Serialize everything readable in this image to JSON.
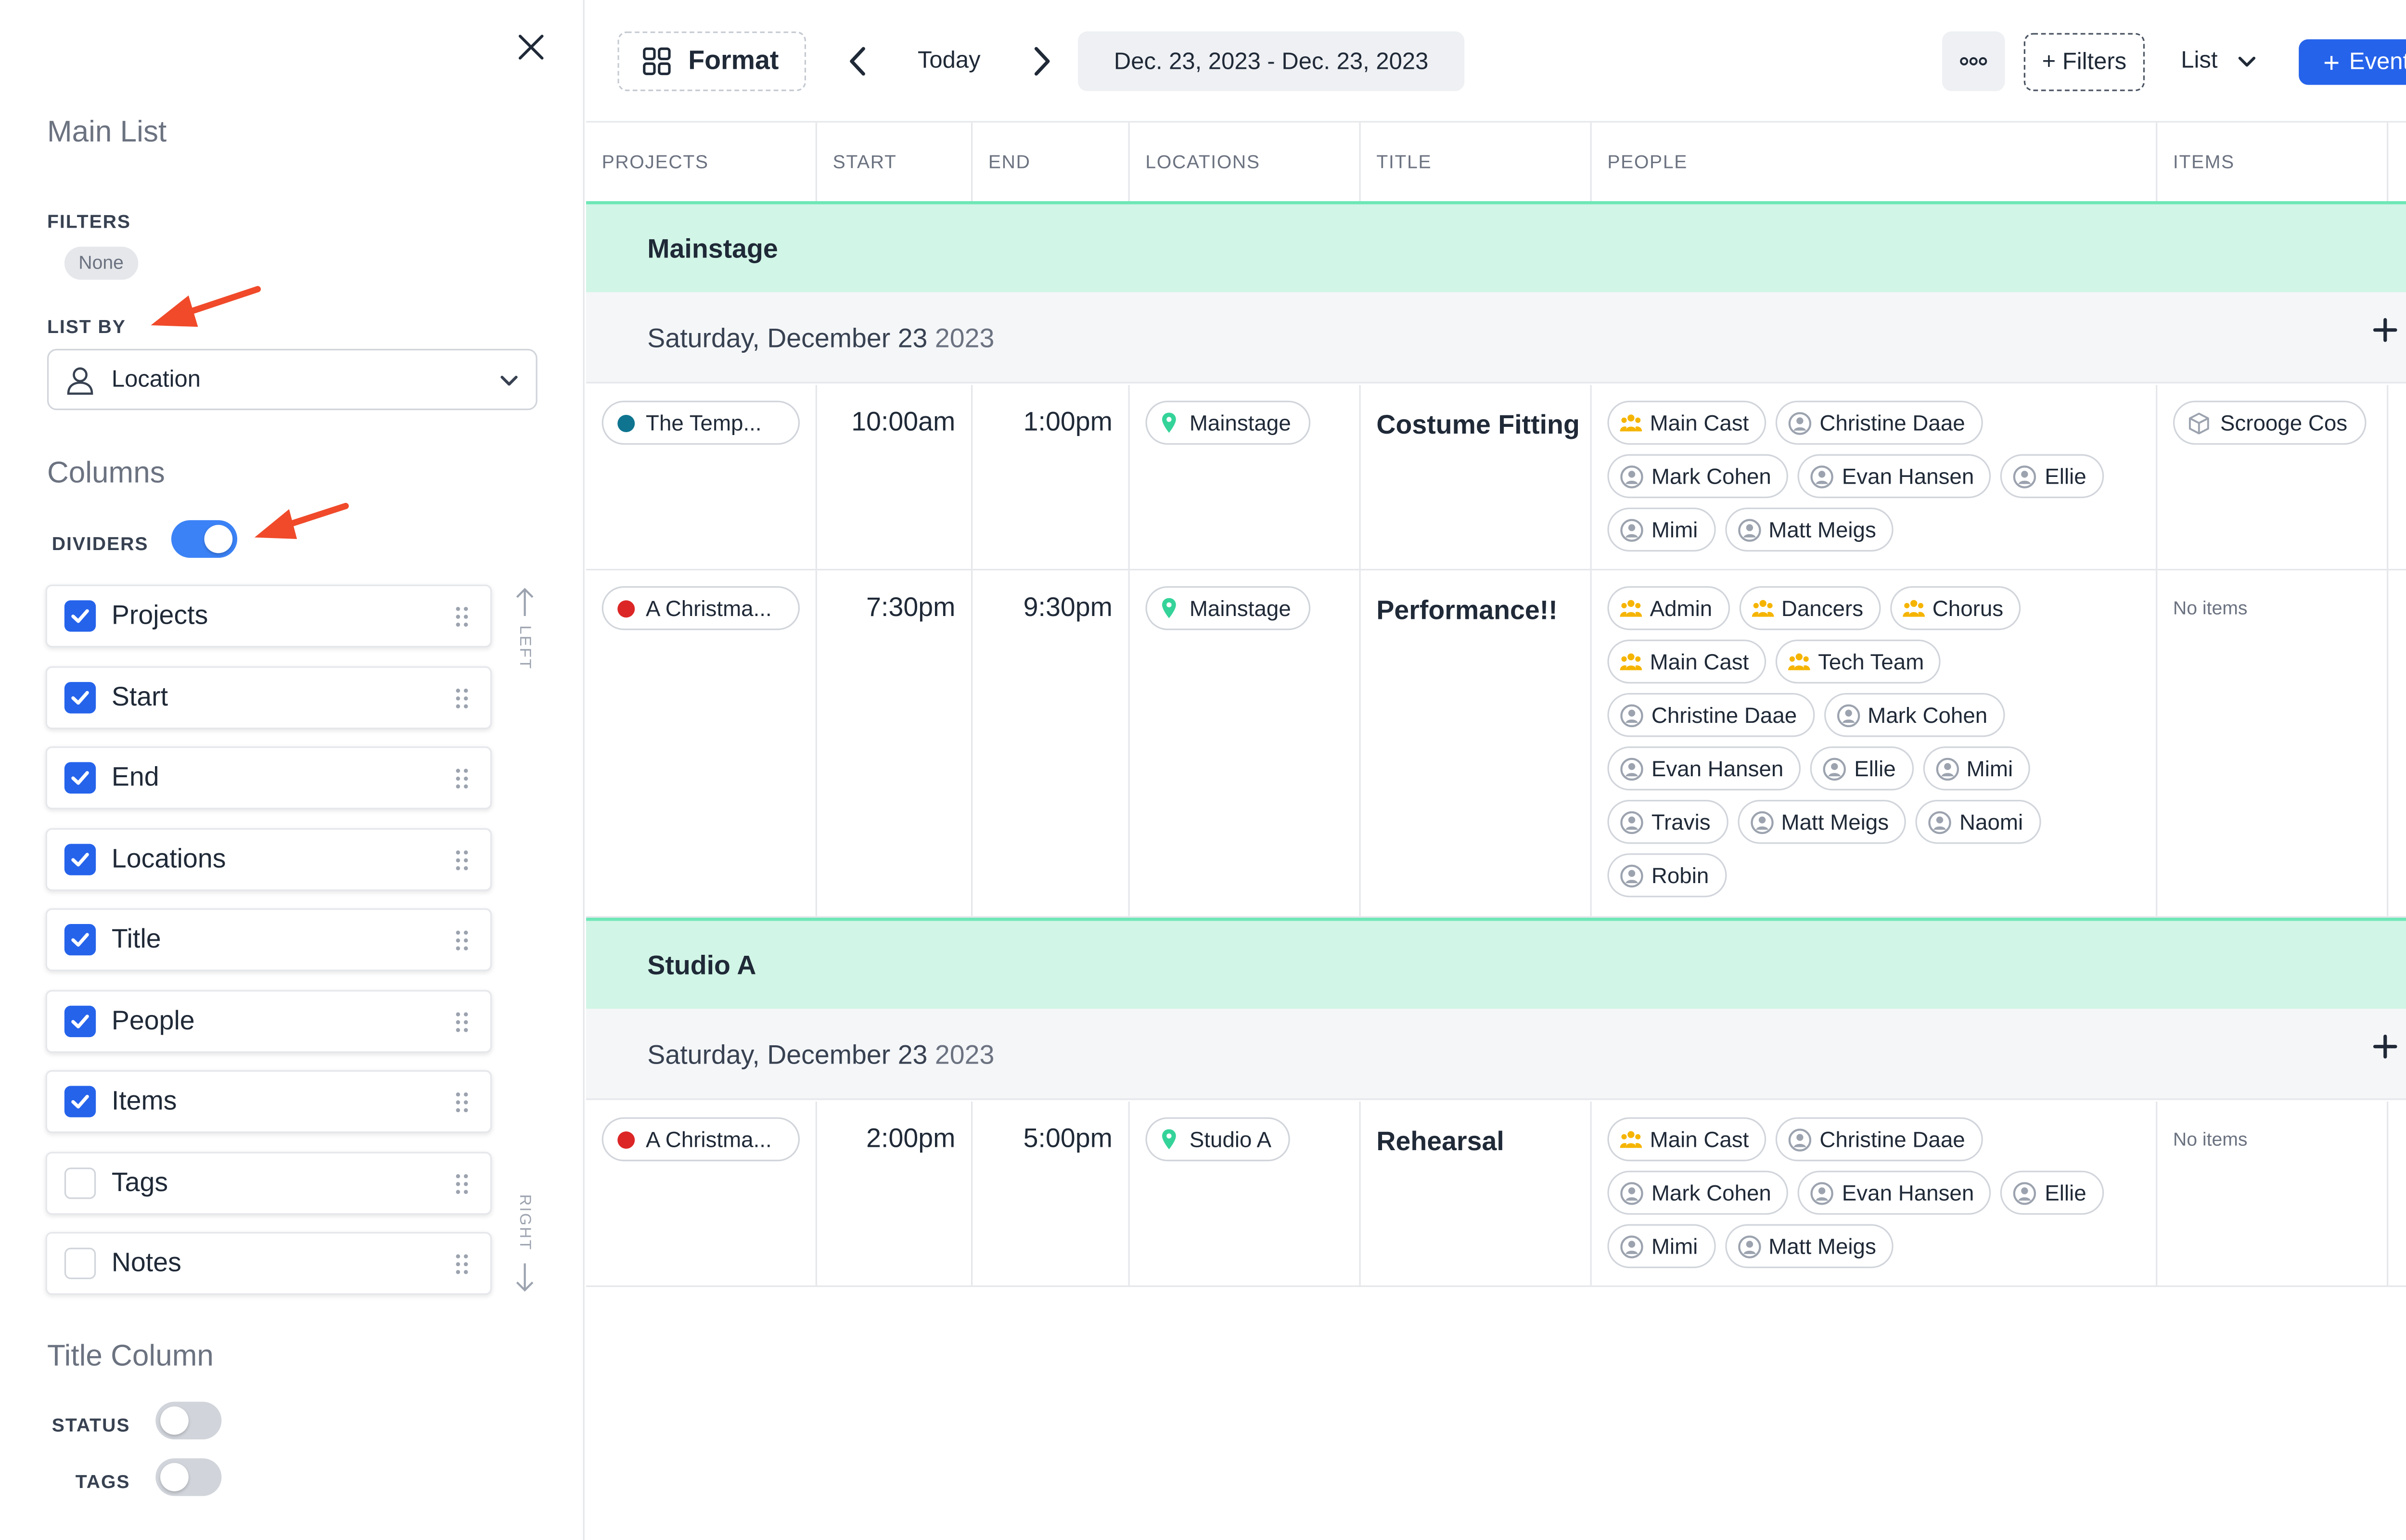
{
  "sidebar": {
    "title": "Main List",
    "filters_label": "FILTERS",
    "filters_value": "None",
    "list_by_label": "LIST BY",
    "list_by_value": "Location",
    "columns_heading": "Columns",
    "dividers_label": "DIVIDERS",
    "dividers_on": true,
    "columns": [
      {
        "label": "Projects",
        "checked": true
      },
      {
        "label": "Start",
        "checked": true
      },
      {
        "label": "End",
        "checked": true
      },
      {
        "label": "Locations",
        "checked": true
      },
      {
        "label": "Title",
        "checked": true
      },
      {
        "label": "People",
        "checked": true
      },
      {
        "label": "Items",
        "checked": true
      },
      {
        "label": "Tags",
        "checked": false
      },
      {
        "label": "Notes",
        "checked": false
      }
    ],
    "left_hint": "LEFT",
    "right_hint": "RIGHT",
    "title_column_heading": "Title Column",
    "status_label": "STATUS",
    "status_on": false,
    "tags_label": "TAGS",
    "tags_on": false
  },
  "toolbar": {
    "format_label": "Format",
    "today_label": "Today",
    "date_range": "Dec. 23, 2023 - Dec. 23, 2023",
    "filters_label": "+ Filters",
    "view_label": "List",
    "event_label": "Event"
  },
  "table": {
    "headers": [
      "PROJECTS",
      "START",
      "END",
      "LOCATIONS",
      "TITLE",
      "PEOPLE",
      "ITEMS"
    ],
    "groups": [
      {
        "name": "Mainstage",
        "date": "Saturday, December 23",
        "year": "2023",
        "events": [
          {
            "project": "The Temp...",
            "project_color": "#0e7490",
            "start": "10:00am",
            "end": "1:00pm",
            "location": "Mainstage",
            "title": "Costume Fitting",
            "people": [
              {
                "name": "Main Cast",
                "type": "group"
              },
              {
                "name": "Christine Daae",
                "type": "person"
              },
              {
                "name": "Mark Cohen",
                "type": "person"
              },
              {
                "name": "Evan Hansen",
                "type": "person"
              },
              {
                "name": "Ellie",
                "type": "person"
              },
              {
                "name": "Mimi",
                "type": "person"
              },
              {
                "name": "Matt Meigs",
                "type": "person"
              }
            ],
            "items": [
              "Scrooge Cos"
            ],
            "no_items": ""
          },
          {
            "project": "A Christma...",
            "project_color": "#dc2626",
            "start": "7:30pm",
            "end": "9:30pm",
            "location": "Mainstage",
            "title": "Performance!!",
            "people": [
              {
                "name": "Admin",
                "type": "group"
              },
              {
                "name": "Dancers",
                "type": "group"
              },
              {
                "name": "Chorus",
                "type": "group"
              },
              {
                "name": "Main Cast",
                "type": "group"
              },
              {
                "name": "Tech Team",
                "type": "group"
              },
              {
                "name": "Christine Daae",
                "type": "person"
              },
              {
                "name": "Mark Cohen",
                "type": "person"
              },
              {
                "name": "Evan Hansen",
                "type": "person"
              },
              {
                "name": "Ellie",
                "type": "person"
              },
              {
                "name": "Mimi",
                "type": "person"
              },
              {
                "name": "Travis",
                "type": "person"
              },
              {
                "name": "Matt Meigs",
                "type": "person"
              },
              {
                "name": "Naomi",
                "type": "person"
              },
              {
                "name": "Robin",
                "type": "person"
              }
            ],
            "items": [],
            "no_items": "No items"
          }
        ]
      },
      {
        "name": "Studio A",
        "date": "Saturday, December 23",
        "year": "2023",
        "events": [
          {
            "project": "A Christma...",
            "project_color": "#dc2626",
            "start": "2:00pm",
            "end": "5:00pm",
            "location": "Studio A",
            "title": "Rehearsal",
            "people": [
              {
                "name": "Main Cast",
                "type": "group"
              },
              {
                "name": "Christine Daae",
                "type": "person"
              },
              {
                "name": "Mark Cohen",
                "type": "person"
              },
              {
                "name": "Evan Hansen",
                "type": "person"
              },
              {
                "name": "Ellie",
                "type": "person"
              },
              {
                "name": "Mimi",
                "type": "person"
              },
              {
                "name": "Matt Meigs",
                "type": "person"
              }
            ],
            "items": [],
            "no_items": "No items"
          }
        ]
      }
    ]
  },
  "colors": {
    "accent": "#2563eb",
    "toggle_on": "#3b82f6",
    "group_bg": "#d1f5e6",
    "group_line": "#6ee7b7",
    "annotation_arrow": "#f04a2a",
    "group_icon": "#f5b400",
    "location_pin": "#34d399"
  }
}
